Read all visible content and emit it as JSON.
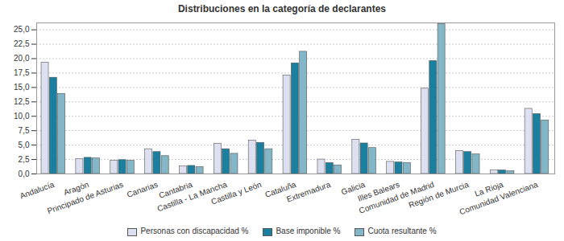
{
  "chart_data": {
    "type": "bar",
    "title": "Distribuciones en la categoría de declarantes",
    "categories": [
      "Andalucía",
      "Aragón",
      "Principado de Asturias",
      "Canarias",
      "Cantabria",
      "Castilla - La Mancha",
      "Castilla y León",
      "Cataluña",
      "Extremadura",
      "Galicia",
      "Illes Balears",
      "Comunidad de Madrid",
      "Región de Murcia",
      "La Rioja",
      "Comunidad Valenciana"
    ],
    "series": [
      {
        "name": "Personas con discapacidad %",
        "color": "#dde0f0",
        "values": [
          19.3,
          2.6,
          2.3,
          4.3,
          1.3,
          5.2,
          5.8,
          17.1,
          2.5,
          5.9,
          2.1,
          14.8,
          4.0,
          0.6,
          11.3
        ]
      },
      {
        "name": "Base imponible %",
        "color": "#1b7f9f",
        "values": [
          16.7,
          2.8,
          2.4,
          3.8,
          1.4,
          4.3,
          5.4,
          19.2,
          1.9,
          5.3,
          2.0,
          19.6,
          3.8,
          0.6,
          10.4
        ]
      },
      {
        "name": "Cuota resultante %",
        "color": "#83b6c6",
        "values": [
          13.9,
          2.7,
          2.3,
          3.1,
          1.2,
          3.5,
          4.3,
          21.2,
          1.5,
          4.5,
          1.9,
          26.0,
          3.4,
          0.5,
          9.3
        ]
      }
    ],
    "ylim": [
      0,
      26.2
    ],
    "yticks": [
      {
        "value": 0,
        "label": "0,0"
      },
      {
        "value": 2.5,
        "label": "2,5"
      },
      {
        "value": 5,
        "label": "5,0"
      },
      {
        "value": 7.5,
        "label": "7,5"
      },
      {
        "value": 10,
        "label": "10,0"
      },
      {
        "value": 12.5,
        "label": "12,5"
      },
      {
        "value": 15,
        "label": "15,0"
      },
      {
        "value": 17.5,
        "label": "17,5"
      },
      {
        "value": 20,
        "label": "20,0"
      },
      {
        "value": 22.5,
        "label": "22,5"
      },
      {
        "value": 25,
        "label": "25,0"
      }
    ],
    "grid": true,
    "legend": "bottom"
  }
}
